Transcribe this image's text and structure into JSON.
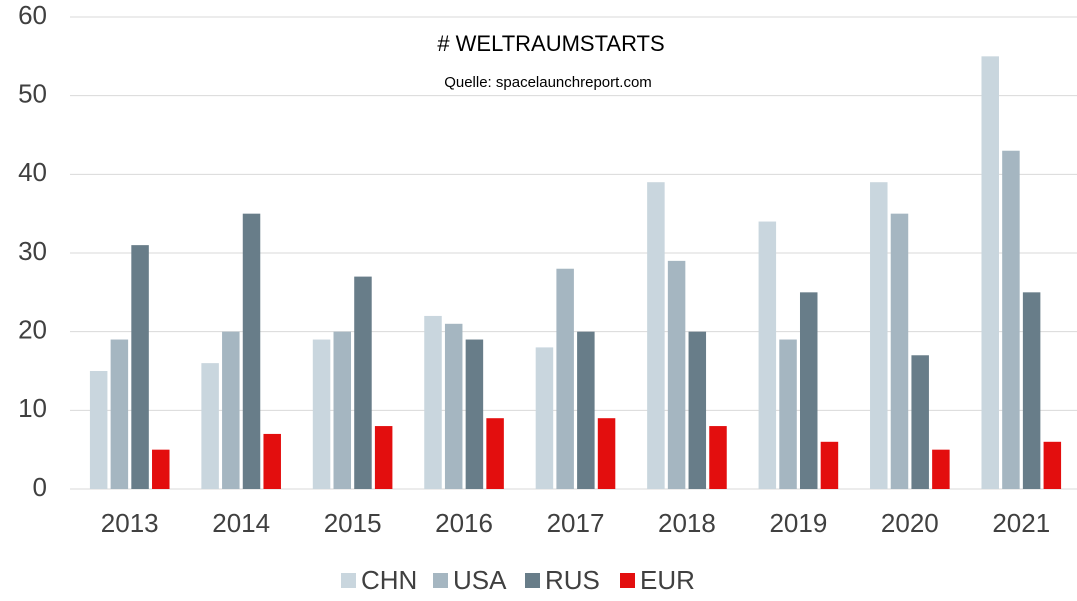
{
  "chart_data": {
    "type": "bar",
    "title": "# WELTRAUMSTARTS",
    "subtitle": "Quelle: spacelaunchreport.com",
    "categories": [
      "2013",
      "2014",
      "2015",
      "2016",
      "2017",
      "2018",
      "2019",
      "2020",
      "2021"
    ],
    "series": [
      {
        "name": "CHN",
        "color": "#c9d6de",
        "values": [
          15,
          16,
          19,
          22,
          18,
          39,
          34,
          39,
          55
        ]
      },
      {
        "name": "USA",
        "color": "#a5b6c1",
        "values": [
          19,
          20,
          20,
          21,
          28,
          29,
          19,
          35,
          43
        ]
      },
      {
        "name": "RUS",
        "color": "#687d89",
        "values": [
          31,
          35,
          27,
          19,
          20,
          20,
          25,
          17,
          25
        ]
      },
      {
        "name": "EUR",
        "color": "#e30e0e",
        "values": [
          5,
          7,
          8,
          9,
          9,
          8,
          6,
          5,
          6
        ]
      }
    ],
    "ylim": [
      0,
      60
    ],
    "yticks": [
      0,
      10,
      20,
      30,
      40,
      50,
      60
    ],
    "grid": true,
    "legend": "bottom"
  }
}
